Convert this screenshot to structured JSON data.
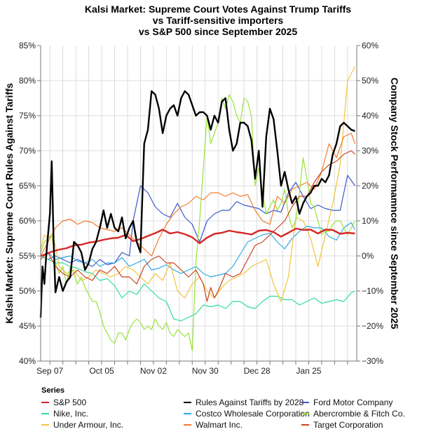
{
  "chart_data": {
    "type": "line",
    "title": [
      "Kalsi Market: Supreme Court Votes Against Trump Tariffs",
      "vs Tariff-sensitive importers",
      "vs S&P 500 since September 2025"
    ],
    "ylabel_left": "Kalshi Market: Supreme Court Rules Against Tariffs",
    "ylabel_right": "Company Stock Performamnce since September 2025",
    "xlabel": "",
    "x_unit": "days since 2025-09-02",
    "xlim": [
      0,
      171
    ],
    "x_ticks": [
      {
        "day": 5,
        "label": "Sep 07"
      },
      {
        "day": 33,
        "label": "Oct 05"
      },
      {
        "day": 61,
        "label": "Nov 02"
      },
      {
        "day": 89,
        "label": "Nov 30"
      },
      {
        "day": 117,
        "label": "Dec 28"
      },
      {
        "day": 145,
        "label": "Jan 25"
      }
    ],
    "ylim_left": [
      40,
      85
    ],
    "yticks_left": [
      "40%",
      "45%",
      "50%",
      "55%",
      "60%",
      "65%",
      "70%",
      "75%",
      "80%",
      "85%"
    ],
    "ylim_right": [
      -30,
      60
    ],
    "yticks_right": [
      "−30%",
      "−20%",
      "−10%",
      "0%",
      "10%",
      "20%",
      "30%",
      "40%",
      "50%",
      "60%"
    ],
    "grid": true,
    "legend": {
      "title": "Series",
      "position": "bottom"
    },
    "series": [
      {
        "name": "S&P 500",
        "axis": "right",
        "color": "#d62728",
        "width": 2.4,
        "x": [
          0,
          3,
          6,
          10,
          14,
          18,
          22,
          26,
          30,
          34,
          38,
          42,
          46,
          50,
          54,
          58,
          62,
          66,
          70,
          74,
          78,
          82,
          86,
          90,
          94,
          98,
          102,
          106,
          110,
          114,
          118,
          122,
          126,
          130,
          134,
          138,
          142,
          146,
          150,
          154,
          158,
          162,
          166,
          170
        ],
        "y": [
          0,
          0.5,
          1.2,
          1.8,
          2.2,
          3,
          3.2,
          3.8,
          4.1,
          4.6,
          5,
          5.2,
          6,
          4.2,
          4.8,
          5.7,
          6.5,
          7.5,
          6.4,
          6.8,
          6.2,
          5.3,
          3.6,
          5.2,
          6.3,
          6.6,
          7.2,
          6.8,
          6.5,
          6.1,
          7.2,
          7.4,
          6.8,
          5.5,
          6.6,
          7.8,
          7.4,
          7.5,
          6.4,
          7.5,
          7.4,
          6.3,
          6.6,
          6.4
        ]
      },
      {
        "name": "Rules Against Tariffs by 2028",
        "axis": "left",
        "color": "#000000",
        "width": 2.4,
        "x": [
          0,
          1,
          2,
          3,
          4,
          5,
          6,
          7,
          8,
          10,
          12,
          14,
          16,
          18,
          20,
          22,
          24,
          26,
          28,
          30,
          32,
          34,
          36,
          38,
          40,
          42,
          44,
          46,
          48,
          50,
          52,
          54,
          56,
          58,
          60,
          62,
          64,
          66,
          68,
          70,
          72,
          74,
          76,
          78,
          80,
          82,
          84,
          86,
          88,
          90,
          92,
          94,
          96,
          98,
          100,
          102,
          104,
          106,
          108,
          110,
          112,
          114,
          116,
          118,
          120,
          122,
          124,
          126,
          128,
          130,
          132,
          134,
          136,
          138,
          140,
          142,
          144,
          146,
          148,
          150,
          152,
          154,
          156,
          158,
          160,
          162,
          164,
          166,
          168,
          170
        ],
        "y": [
          46.2,
          53.5,
          51,
          55,
          58,
          61,
          68.5,
          57,
          49.8,
          52,
          50,
          51.3,
          52,
          57,
          56.5,
          55.5,
          53,
          54,
          56,
          57,
          59,
          61.5,
          59,
          61,
          59,
          58.5,
          60.5,
          57.5,
          59,
          60,
          57,
          55.5,
          71,
          73,
          78.5,
          78,
          76,
          72.5,
          75,
          76,
          76.5,
          75,
          77.5,
          78.5,
          78,
          76.5,
          75,
          75.5,
          75.5,
          75,
          73,
          75,
          74,
          77,
          77.5,
          73,
          70,
          71,
          74,
          74,
          73.5,
          71.5,
          66,
          70,
          62,
          72,
          76,
          74.5,
          70,
          65,
          67,
          64.5,
          62.5,
          63.5,
          61,
          62.5,
          63.5,
          64,
          65,
          65,
          66,
          65.5,
          66.5,
          69.5,
          71,
          73.5,
          74,
          73.5,
          73,
          72.8
        ]
      },
      {
        "name": "Ford Motor Company",
        "axis": "right",
        "color": "#3b57c9",
        "width": 1.2,
        "x": [
          0,
          4,
          8,
          12,
          16,
          20,
          24,
          28,
          32,
          36,
          40,
          44,
          48,
          50,
          54,
          58,
          62,
          66,
          70,
          74,
          78,
          82,
          86,
          90,
          94,
          98,
          102,
          106,
          110,
          114,
          118,
          122,
          126,
          130,
          134,
          138,
          142,
          146,
          150,
          154,
          158,
          162,
          166,
          170
        ],
        "y": [
          0,
          -1,
          0,
          -1,
          -2,
          -1,
          -2,
          -3,
          -1,
          -2.5,
          -2,
          1,
          0,
          10,
          20,
          18,
          14,
          12,
          11,
          15,
          11,
          9,
          4,
          10,
          12,
          13,
          13,
          15.5,
          14.5,
          14,
          13.5,
          12,
          13,
          12.5,
          18,
          21,
          17,
          13.5,
          14.5,
          13.5,
          13,
          13,
          23,
          20
        ]
      },
      {
        "name": "Costco Wholesale Corporation",
        "axis": "right",
        "color": "#2ea9e5",
        "width": 1.2,
        "x": [
          0,
          4,
          8,
          12,
          16,
          20,
          24,
          28,
          32,
          36,
          40,
          44,
          48,
          52,
          56,
          60,
          64,
          68,
          72,
          76,
          80,
          84,
          88,
          92,
          96,
          100,
          104,
          108,
          112,
          116,
          120,
          124,
          128,
          132,
          136,
          140,
          144,
          148,
          152,
          156,
          160,
          164,
          168,
          170
        ],
        "y": [
          0,
          1,
          -1,
          -0.5,
          0,
          -1.5,
          -2,
          -1,
          -3,
          -2,
          -2,
          -0.5,
          -3,
          -2,
          -1,
          -4,
          -3.5,
          -2.5,
          -4,
          -5,
          -4,
          -3,
          -5,
          -6,
          -5.5,
          -5,
          -3,
          0.5,
          4,
          5,
          6,
          6.5,
          4,
          2,
          5,
          7,
          8.5,
          8,
          8,
          5.5,
          4.5,
          8,
          9.5,
          7.5
        ]
      },
      {
        "name": "Nike, Inc.",
        "axis": "right",
        "color": "#2edc9a",
        "width": 1.2,
        "x": [
          0,
          4,
          8,
          12,
          16,
          20,
          24,
          28,
          32,
          36,
          40,
          44,
          48,
          52,
          56,
          60,
          64,
          68,
          72,
          76,
          80,
          84,
          88,
          92,
          96,
          100,
          104,
          108,
          112,
          116,
          120,
          124,
          128,
          132,
          136,
          140,
          144,
          148,
          152,
          156,
          160,
          164,
          168,
          170
        ],
        "y": [
          0,
          -1,
          -2,
          -2,
          -3,
          -3.5,
          -4.5,
          -5,
          -7,
          -6.5,
          -8.5,
          -12,
          -10,
          -11,
          -8,
          -10,
          -12,
          -13,
          -18,
          -18.5,
          -17.5,
          -16.5,
          -14,
          -14.5,
          -14,
          -15,
          -13,
          -13,
          -14.5,
          -15,
          -13,
          -11.5,
          -11.5,
          -12.5,
          -12.5,
          -14,
          -13,
          -12,
          -13.5,
          -13,
          -12.5,
          -13,
          -10.5,
          -10
        ]
      },
      {
        "name": "Under Armour, Inc.",
        "axis": "right",
        "color": "#f2c43b",
        "width": 1.2,
        "x": [
          0,
          2,
          4,
          6,
          8,
          10,
          14,
          18,
          22,
          26,
          30,
          34,
          38,
          42,
          46,
          50,
          54,
          58,
          62,
          66,
          70,
          74,
          78,
          82,
          86,
          90,
          94,
          98,
          102,
          106,
          110,
          114,
          118,
          122,
          126,
          130,
          134,
          138,
          142,
          146,
          150,
          154,
          158,
          162,
          166,
          170
        ],
        "y": [
          2,
          6,
          5,
          6,
          3,
          -3,
          -5,
          -4,
          -7,
          -6,
          -4,
          -5,
          -6,
          -5,
          -3,
          -4,
          -6,
          -8,
          -5,
          -7,
          -2,
          -10,
          -12,
          -8,
          -6,
          -10,
          -12,
          -9,
          -7,
          -6,
          -5,
          -3,
          -2,
          -1,
          -8,
          -13,
          -6,
          11,
          10,
          5,
          -3,
          6,
          15,
          26,
          50,
          54
        ]
      },
      {
        "name": "Walmart Inc.",
        "axis": "right",
        "color": "#f47a2c",
        "width": 1.2,
        "x": [
          0,
          4,
          8,
          12,
          16,
          20,
          24,
          28,
          32,
          36,
          40,
          44,
          48,
          52,
          56,
          60,
          64,
          68,
          72,
          76,
          80,
          84,
          88,
          92,
          96,
          100,
          104,
          108,
          112,
          116,
          120,
          124,
          128,
          132,
          136,
          140,
          144,
          148,
          152,
          156,
          160,
          164,
          168,
          170
        ],
        "y": [
          0,
          4,
          8,
          10,
          10.5,
          9,
          10,
          9.5,
          8,
          7.5,
          7,
          8,
          6,
          4,
          2,
          0,
          5,
          9,
          12,
          14,
          15,
          17,
          16,
          18,
          18,
          17,
          18,
          17,
          17.5,
          13,
          10,
          9,
          17,
          15,
          19,
          20,
          21,
          19,
          24,
          32,
          28,
          34,
          35,
          32
        ]
      },
      {
        "name": "Abercrombie & Fitch Co.",
        "axis": "right",
        "color": "#98e33a",
        "width": 1.2,
        "x": [
          0,
          2,
          4,
          6,
          8,
          10,
          12,
          14,
          16,
          18,
          20,
          22,
          24,
          26,
          28,
          30,
          32,
          34,
          36,
          38,
          40,
          42,
          44,
          46,
          48,
          50,
          52,
          54,
          56,
          58,
          60,
          62,
          64,
          66,
          68,
          70,
          72,
          74,
          76,
          78,
          80,
          82,
          84,
          86,
          88,
          90,
          92,
          94,
          96,
          98,
          100,
          102,
          104,
          106,
          108,
          110,
          112,
          114,
          116,
          118,
          120,
          122,
          124,
          126,
          128,
          130,
          132,
          134,
          136,
          138,
          140,
          142,
          144,
          146,
          148,
          150,
          152,
          154,
          156,
          158,
          160,
          162,
          164,
          166,
          168,
          170
        ],
        "y": [
          1,
          4,
          5,
          6,
          -2,
          -5,
          -3,
          -8,
          -3,
          -5,
          -8,
          -6,
          -9,
          -11,
          -13,
          -13,
          -16,
          -20,
          -22,
          -24,
          -25,
          -22,
          -22,
          -24,
          -21,
          -19,
          -18,
          -19,
          -21,
          -20,
          -21,
          -18,
          -20,
          -21,
          -19,
          -22,
          -23,
          -21,
          -22,
          -23,
          -22,
          -27,
          -2,
          10,
          25,
          40,
          32,
          35,
          38,
          45,
          42,
          46,
          44,
          40,
          38,
          45,
          44,
          40,
          20,
          25,
          18,
          12,
          14,
          16,
          13,
          15,
          19,
          12,
          8,
          10,
          18,
          28,
          22,
          15,
          14,
          10,
          6,
          7,
          7,
          9,
          10,
          10,
          8,
          6,
          8,
          10
        ]
      },
      {
        "name": "Target Corporation",
        "axis": "right",
        "color": "#c9411f",
        "width": 1.2,
        "x": [
          0,
          4,
          8,
          12,
          16,
          20,
          24,
          28,
          32,
          36,
          40,
          44,
          48,
          52,
          56,
          60,
          64,
          68,
          72,
          76,
          80,
          84,
          88,
          90,
          92,
          94,
          96,
          100,
          104,
          108,
          112,
          116,
          120,
          124,
          128,
          132,
          136,
          140,
          144,
          148,
          152,
          156,
          160,
          164,
          168,
          170
        ],
        "y": [
          -1,
          1,
          -3,
          -5,
          -6,
          -4,
          -6,
          -7,
          -4,
          -5,
          -3,
          -6,
          -6,
          -8,
          -3,
          -1,
          0,
          -2,
          -2,
          -4,
          -6,
          -4,
          -8,
          -13,
          -9,
          -12,
          -10,
          -5,
          -6,
          -5,
          -1,
          3,
          4,
          6,
          8,
          10,
          14,
          17,
          17,
          21,
          24,
          26,
          27,
          29,
          30,
          29
        ]
      }
    ]
  }
}
